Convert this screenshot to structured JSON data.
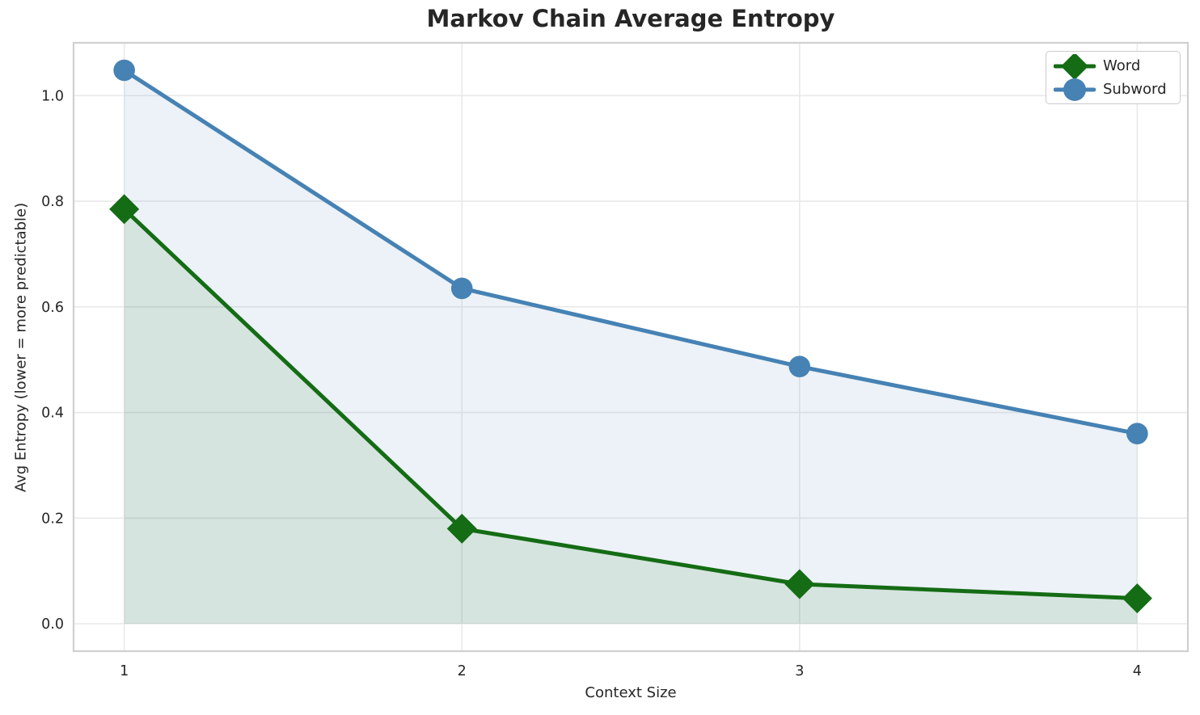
{
  "style": {
    "background": "#ffffff",
    "grid_color": "#e9e9e9",
    "spine_color": "#d0d0d0",
    "text_color": "#262626",
    "fill_alpha": 0.1
  },
  "chart_data": {
    "type": "line",
    "title": "Markov Chain Average Entropy",
    "xlabel": "Context Size",
    "ylabel": "Avg Entropy (lower = more predictable)",
    "x": [
      1,
      2,
      3,
      4
    ],
    "series": [
      {
        "name": "Word",
        "values": [
          0.785,
          0.18,
          0.075,
          0.048
        ],
        "color": "#146c14",
        "marker": "diamond",
        "filled_to_zero": true
      },
      {
        "name": "Subword",
        "values": [
          1.048,
          0.635,
          0.487,
          0.36
        ],
        "color": "#4682b4",
        "marker": "circle",
        "filled_to_zero": true
      }
    ],
    "xlim": [
      0.85,
      4.15
    ],
    "ylim": [
      -0.052,
      1.1
    ],
    "xticks": [
      "1",
      "2",
      "3",
      "4"
    ],
    "yticks": [
      "0.0",
      "0.2",
      "0.4",
      "0.6",
      "0.8",
      "1.0"
    ],
    "grid": true,
    "legend_position": "upper right",
    "legend_entries": [
      "Word",
      "Subword"
    ]
  }
}
